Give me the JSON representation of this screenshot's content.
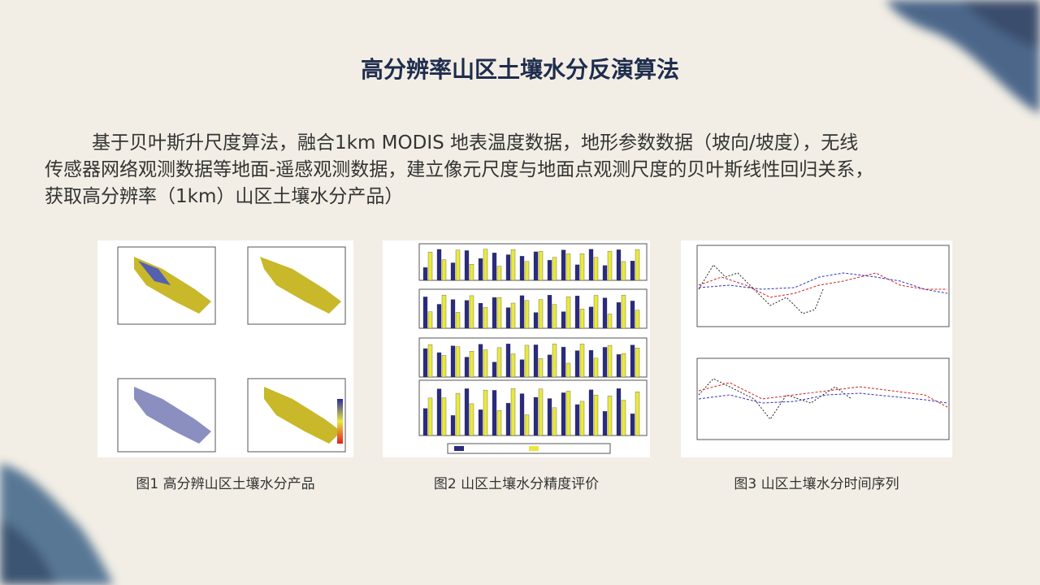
{
  "header": {
    "title": "高分辨率山区土壤水分反演算法"
  },
  "body": {
    "lines": [
      "基于贝叶斯升尺度算法，融合1km MODIS 地表温度数据，地形参数数据（坡向/坡度），无线",
      "传感器网络观测数据等地面-遥感观测数据，建立像元尺度与地面点观测尺度的贝叶斯线性回归关系，",
      "获取高分辨率（1km）山区土壤水分产品）"
    ]
  },
  "figures": [
    {
      "caption": "图1 高分辨山区土壤水分产品"
    },
    {
      "caption": "图2 山区土壤水分精度评价"
    },
    {
      "caption": "图3 山区土壤水分时间序列"
    }
  ]
}
